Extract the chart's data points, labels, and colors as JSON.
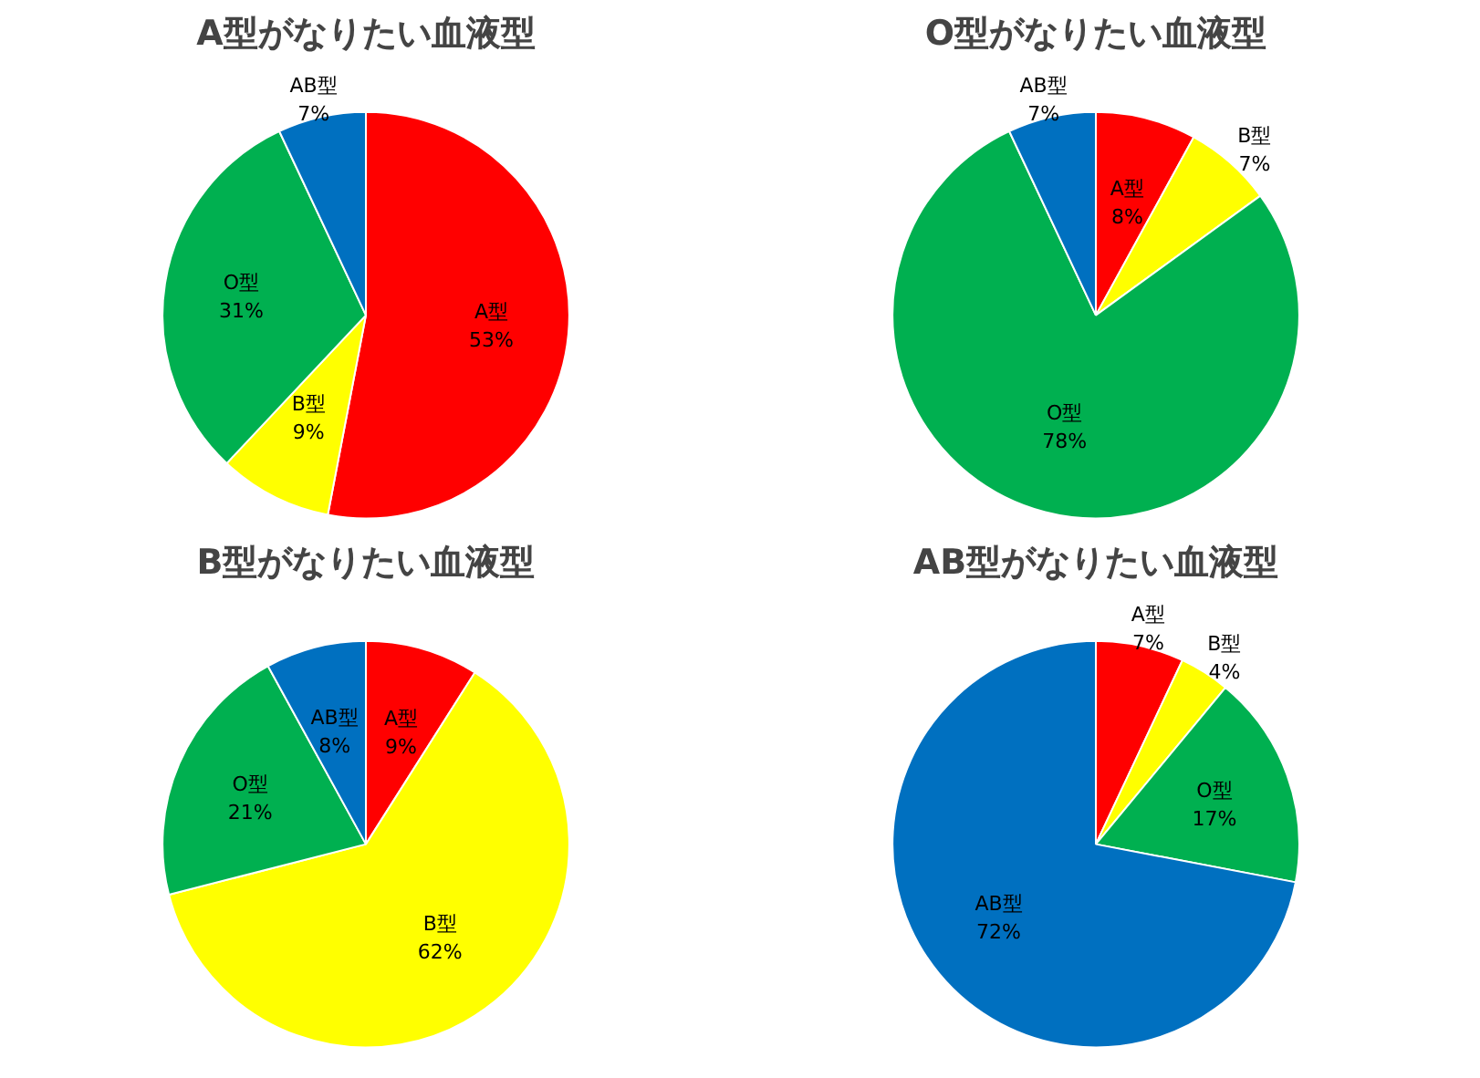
{
  "chart_data": [
    {
      "type": "pie",
      "title": "A型がなりたい血液型",
      "categories": [
        "A型",
        "B型",
        "O型",
        "AB型"
      ],
      "values": [
        53,
        9,
        31,
        7
      ],
      "value_labels": [
        "53%",
        "9%",
        "31%",
        "7%"
      ],
      "colors": [
        "#ff0000",
        "#ffff00",
        "#00b050",
        "#0070c0"
      ]
    },
    {
      "type": "pie",
      "title": "O型がなりたい血液型",
      "categories": [
        "A型",
        "B型",
        "O型",
        "AB型"
      ],
      "values": [
        8,
        7,
        78,
        7
      ],
      "value_labels": [
        "8%",
        "7%",
        "78%",
        "7%"
      ],
      "colors": [
        "#ff0000",
        "#ffff00",
        "#00b050",
        "#0070c0"
      ]
    },
    {
      "type": "pie",
      "title": "B型がなりたい血液型",
      "categories": [
        "A型",
        "B型",
        "O型",
        "AB型"
      ],
      "values": [
        9,
        62,
        21,
        8
      ],
      "value_labels": [
        "9%",
        "62%",
        "21%",
        "8%"
      ],
      "colors": [
        "#ff0000",
        "#ffff00",
        "#00b050",
        "#0070c0"
      ]
    },
    {
      "type": "pie",
      "title": "AB型がなりたい血液型",
      "categories": [
        "A型",
        "B型",
        "O型",
        "AB型"
      ],
      "values": [
        7,
        4,
        17,
        72
      ],
      "value_labels": [
        "7%",
        "4%",
        "17%",
        "72%"
      ],
      "colors": [
        "#ff0000",
        "#ffff00",
        "#00b050",
        "#0070c0"
      ]
    }
  ]
}
